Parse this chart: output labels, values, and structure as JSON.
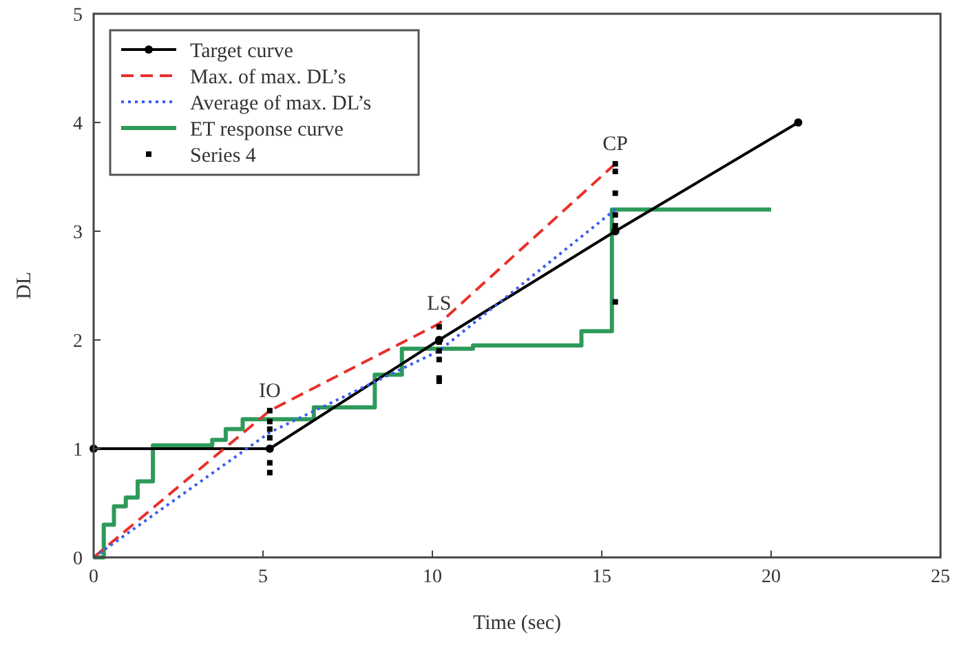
{
  "chart_data": {
    "type": "line",
    "xlabel": "Time (sec)",
    "ylabel": "DL",
    "xlim": [
      0,
      25
    ],
    "xticks": [
      0,
      5,
      10,
      15,
      20,
      25
    ],
    "ylim": [
      0,
      5
    ],
    "yticks": [
      0,
      1,
      2,
      3,
      4,
      5
    ],
    "grid": false,
    "legend": "top left",
    "series": [
      {
        "name": "Target curve",
        "color": "#000000",
        "marker": "circle",
        "line_style": "solid",
        "x": [
          0,
          5.2,
          10.2,
          15.4,
          20.8
        ],
        "values": [
          1,
          1,
          2,
          3,
          4
        ]
      },
      {
        "name": "Max. of max. DL’s",
        "color": "#e8302a",
        "marker": "none",
        "line_style": "dashed",
        "x": [
          0,
          5.2,
          10.2,
          15.4
        ],
        "values": [
          0,
          1.35,
          2.15,
          3.62
        ]
      },
      {
        "name": "Average of max. DL’s",
        "color": "#3a5cf0",
        "marker": "none",
        "line_style": "dotted",
        "x": [
          0,
          5.2,
          10.2,
          15.4
        ],
        "values": [
          0,
          1.15,
          1.9,
          3.2
        ]
      },
      {
        "name": "ET response curve",
        "type": "step",
        "color": "#2e9a5a",
        "marker": "none",
        "line_style": "solid",
        "x": [
          0,
          0.3,
          0.6,
          0.95,
          1.3,
          1.75,
          3.5,
          3.9,
          4.4,
          6.5,
          8.3,
          9.1,
          11.2,
          14.4,
          15.3,
          20
        ],
        "values": [
          0,
          0.3,
          0.47,
          0.55,
          0.7,
          1.03,
          1.08,
          1.18,
          1.27,
          1.38,
          1.68,
          1.92,
          1.95,
          2.08,
          3.2,
          3.2
        ]
      },
      {
        "name": "Series 4",
        "type": "scatter",
        "color": "#000000",
        "marker": "square",
        "x": [
          5.2,
          5.2,
          5.2,
          5.2,
          5.2,
          5.2,
          10.2,
          10.2,
          10.2,
          10.2,
          10.2,
          10.2,
          15.4,
          15.4,
          15.4,
          15.4,
          15.4,
          15.4
        ],
        "values": [
          1.35,
          1.25,
          1.18,
          1.1,
          0.87,
          0.78,
          2.12,
          1.98,
          1.9,
          1.82,
          1.65,
          1.62,
          3.62,
          3.55,
          3.35,
          3.15,
          3.05,
          2.35
        ]
      }
    ],
    "annotations": [
      {
        "text": "IO",
        "x": 5.2,
        "y": 1.35
      },
      {
        "text": "LS",
        "x": 10.2,
        "y": 2.15
      },
      {
        "text": "CP",
        "x": 15.4,
        "y": 3.62
      }
    ]
  }
}
